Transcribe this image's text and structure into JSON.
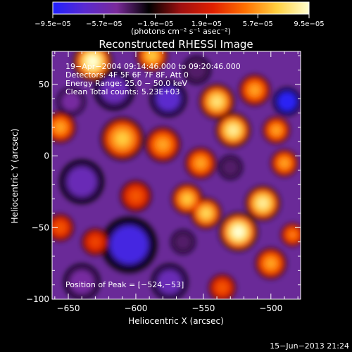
{
  "chart_data": {
    "type": "heatmap",
    "title": "Reconstructed RHESSI Image",
    "xlabel": "Heliocentric X (arcsec)",
    "ylabel": "Heliocentric Y (arcsec)",
    "xlim": [
      -662,
      -478
    ],
    "ylim": [
      -100,
      73
    ],
    "x_ticks": [
      -650,
      -600,
      -550,
      -500
    ],
    "x_tick_labels": [
      "−650",
      "−600",
      "−550",
      "−500"
    ],
    "y_ticks": [
      -100,
      -50,
      0,
      50
    ],
    "y_tick_labels": [
      "−100",
      "−50",
      "0",
      "50"
    ],
    "colorbar": {
      "min": -9.5e-05,
      "max": 9.5e-05,
      "tick_values": [
        -9.5e-05,
        -5.7e-05,
        -1.9e-05,
        1.9e-05,
        5.7e-05,
        9.5e-05
      ],
      "tick_labels": [
        "−9.5e−05",
        "−5.7e−05",
        "−1.9e−05",
        "1.9e−05",
        "5.7e−05",
        "9.5e−05"
      ],
      "units_label": "(photons cm⁻² s⁻¹ asec⁻²)",
      "colors": [
        "#2020ff",
        "#5a2ad0",
        "#7a2a9a",
        "#000000",
        "#a01010",
        "#e02000",
        "#ff7000",
        "#ffd040",
        "#ffffd0"
      ]
    },
    "annotations": [
      "19−Apr−2004 09:14:46.000 to 09:20:46.000",
      "Detectors: 4F 5F 6F 7F 8F, Att 0",
      "Energy Range: 25.0 − 50.0 keV",
      "Clean    Total counts: 5.23E+03"
    ],
    "peak_label": "Position of Peak = [−524,−53]",
    "peak": [
      -524,
      -53
    ],
    "hot_spots": [
      {
        "x": -632,
        "y": 66,
        "value": 9.5e-05,
        "r": 10
      },
      {
        "x": -588,
        "y": 70,
        "value": 7e-05,
        "r": 8
      },
      {
        "x": -656,
        "y": 20,
        "value": 6e-05,
        "r": 8
      },
      {
        "x": -610,
        "y": 12,
        "value": 7e-05,
        "r": 11
      },
      {
        "x": -580,
        "y": 8,
        "value": 6e-05,
        "r": 9
      },
      {
        "x": -600,
        "y": -28,
        "value": 4e-05,
        "r": 8
      },
      {
        "x": -656,
        "y": -50,
        "value": 4e-05,
        "r": 7
      },
      {
        "x": -630,
        "y": -60,
        "value": 3.5e-05,
        "r": 7
      },
      {
        "x": -540,
        "y": 38,
        "value": 8e-05,
        "r": 9
      },
      {
        "x": -528,
        "y": 18,
        "value": 8.5e-05,
        "r": 9
      },
      {
        "x": -512,
        "y": 46,
        "value": 6e-05,
        "r": 8
      },
      {
        "x": -496,
        "y": 18,
        "value": 6e-05,
        "r": 7
      },
      {
        "x": -552,
        "y": -5,
        "value": 6e-05,
        "r": 8
      },
      {
        "x": -562,
        "y": -30,
        "value": 7e-05,
        "r": 8
      },
      {
        "x": -548,
        "y": -40,
        "value": 7.5e-05,
        "r": 8
      },
      {
        "x": -524,
        "y": -53,
        "value": 9.5e-05,
        "r": 10
      },
      {
        "x": -506,
        "y": -33,
        "value": 8.5e-05,
        "r": 9
      },
      {
        "x": -490,
        "y": -5,
        "value": 6e-05,
        "r": 7
      },
      {
        "x": -500,
        "y": -75,
        "value": 6e-05,
        "r": 8
      },
      {
        "x": -484,
        "y": -55,
        "value": 5e-05,
        "r": 6
      },
      {
        "x": -536,
        "y": -92,
        "value": 4e-05,
        "r": 7
      }
    ],
    "cold_spots": [
      {
        "x": -616,
        "y": 46,
        "value": -6e-05,
        "r": 10
      },
      {
        "x": -576,
        "y": 40,
        "value": -7e-05,
        "r": 9
      },
      {
        "x": -648,
        "y": 38,
        "value": -5e-05,
        "r": 7
      },
      {
        "x": -555,
        "y": 60,
        "value": -4e-05,
        "r": 7
      },
      {
        "x": -488,
        "y": 38,
        "value": -9e-05,
        "r": 7
      },
      {
        "x": -640,
        "y": -18,
        "value": -6e-05,
        "r": 11
      },
      {
        "x": -605,
        "y": -62,
        "value": -8e-05,
        "r": 14
      },
      {
        "x": -640,
        "y": -88,
        "value": -5e-05,
        "r": 9
      },
      {
        "x": -575,
        "y": -88,
        "value": -6e-05,
        "r": 9
      },
      {
        "x": -565,
        "y": -60,
        "value": -4e-05,
        "r": 6
      },
      {
        "x": -530,
        "y": -8,
        "value": -4e-05,
        "r": 6
      }
    ]
  },
  "footer_date": "15−Jun−2013 21:24"
}
